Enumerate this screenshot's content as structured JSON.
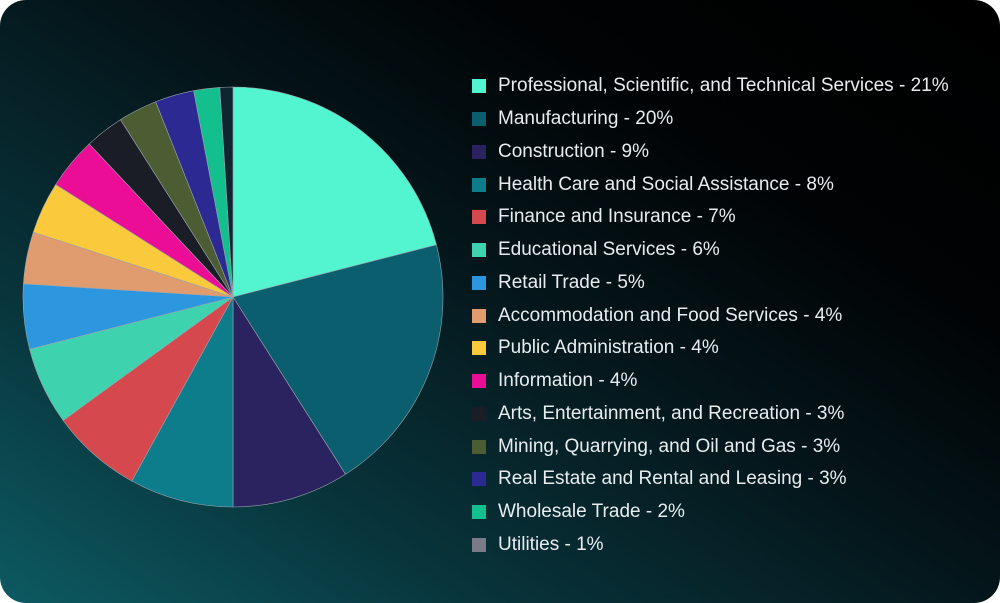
{
  "chart_data": {
    "type": "pie",
    "categories": [
      "Professional, Scientific, and Technical Services",
      "Manufacturing",
      "Construction",
      "Health Care and Social Assistance",
      "Finance and Insurance",
      "Educational Services",
      "Retail Trade",
      "Accommodation and Food Services",
      "Public Administration",
      "Information",
      "Arts, Entertainment, and Recreation",
      "Mining, Quarrying, and Oil and Gas",
      "Real Estate and Rental and Leasing",
      "Wholesale Trade",
      "Utilities"
    ],
    "values": [
      21,
      20,
      9,
      8,
      7,
      6,
      5,
      4,
      4,
      4,
      3,
      3,
      3,
      2,
      1
    ],
    "legend_labels": [
      "Professional, Scientific, and Technical Services - 21%",
      "Manufacturing - 20%",
      "Construction - 9%",
      "Health Care and Social Assistance - 8%",
      "Finance and Insurance - 7%",
      "Educational Services - 6%",
      "Retail Trade - 5%",
      "Accommodation and Food Services - 4%",
      "Public Administration - 4%",
      "Information - 4%",
      "Arts, Entertainment, and Recreation - 3%",
      "Mining, Quarrying, and Oil and Gas - 3%",
      "Real Estate and Rental and Leasing - 3%",
      "Wholesale Trade - 2%",
      "Utilities - 1%"
    ],
    "colors": [
      "#52f5cf",
      "#0a5e6d",
      "#2a2360",
      "#0d7d8c",
      "#d4484e",
      "#3ed3ae",
      "#2c96de",
      "#e09c6e",
      "#fbc93c",
      "#ec0d97",
      "#1a1c26",
      "#4c5d34",
      "#2c2a92",
      "#14bf8e",
      "#7a7a88"
    ],
    "slice_colors": [
      "#52f5cf",
      "#0a5e6d",
      "#2a2360",
      "#0d7d8c",
      "#d4484e",
      "#3ed3ae",
      "#2c96de",
      "#e09c6e",
      "#fbc93c",
      "#ec0d97",
      "#1a1c26",
      "#4c5d34",
      "#2c2a92",
      "#14bf8e",
      "#0f2630"
    ],
    "legend_position": "right"
  }
}
